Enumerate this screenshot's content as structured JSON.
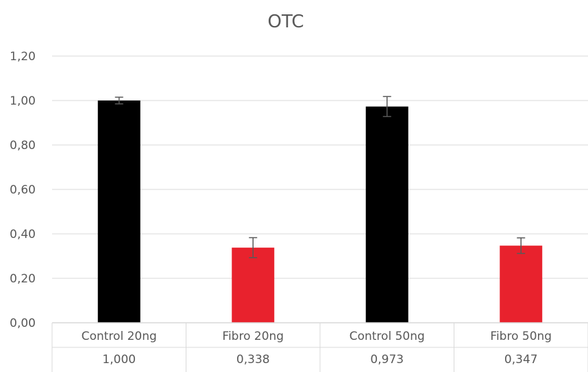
{
  "chart_data": {
    "type": "bar",
    "title": "OTC",
    "categories": [
      "Control 20ng",
      "Fibro 20ng",
      "Control 50ng",
      "Fibro 50ng"
    ],
    "values": [
      1.0,
      0.338,
      0.973,
      0.347
    ],
    "value_labels": [
      "1,000",
      "0,338",
      "0,973",
      "0,347"
    ],
    "error": [
      0.015,
      0.045,
      0.045,
      0.035
    ],
    "bar_colors": [
      "#000000",
      "#e8222d",
      "#000000",
      "#e8222d"
    ],
    "ylim": [
      0,
      1.2
    ],
    "yticks": [
      0,
      0.2,
      0.4,
      0.6,
      0.8,
      1.0,
      1.2
    ],
    "ytick_labels": [
      "0,00",
      "0,20",
      "0,40",
      "0,60",
      "0,80",
      "1,00",
      "1,20"
    ],
    "grid": true,
    "data_table": true
  }
}
